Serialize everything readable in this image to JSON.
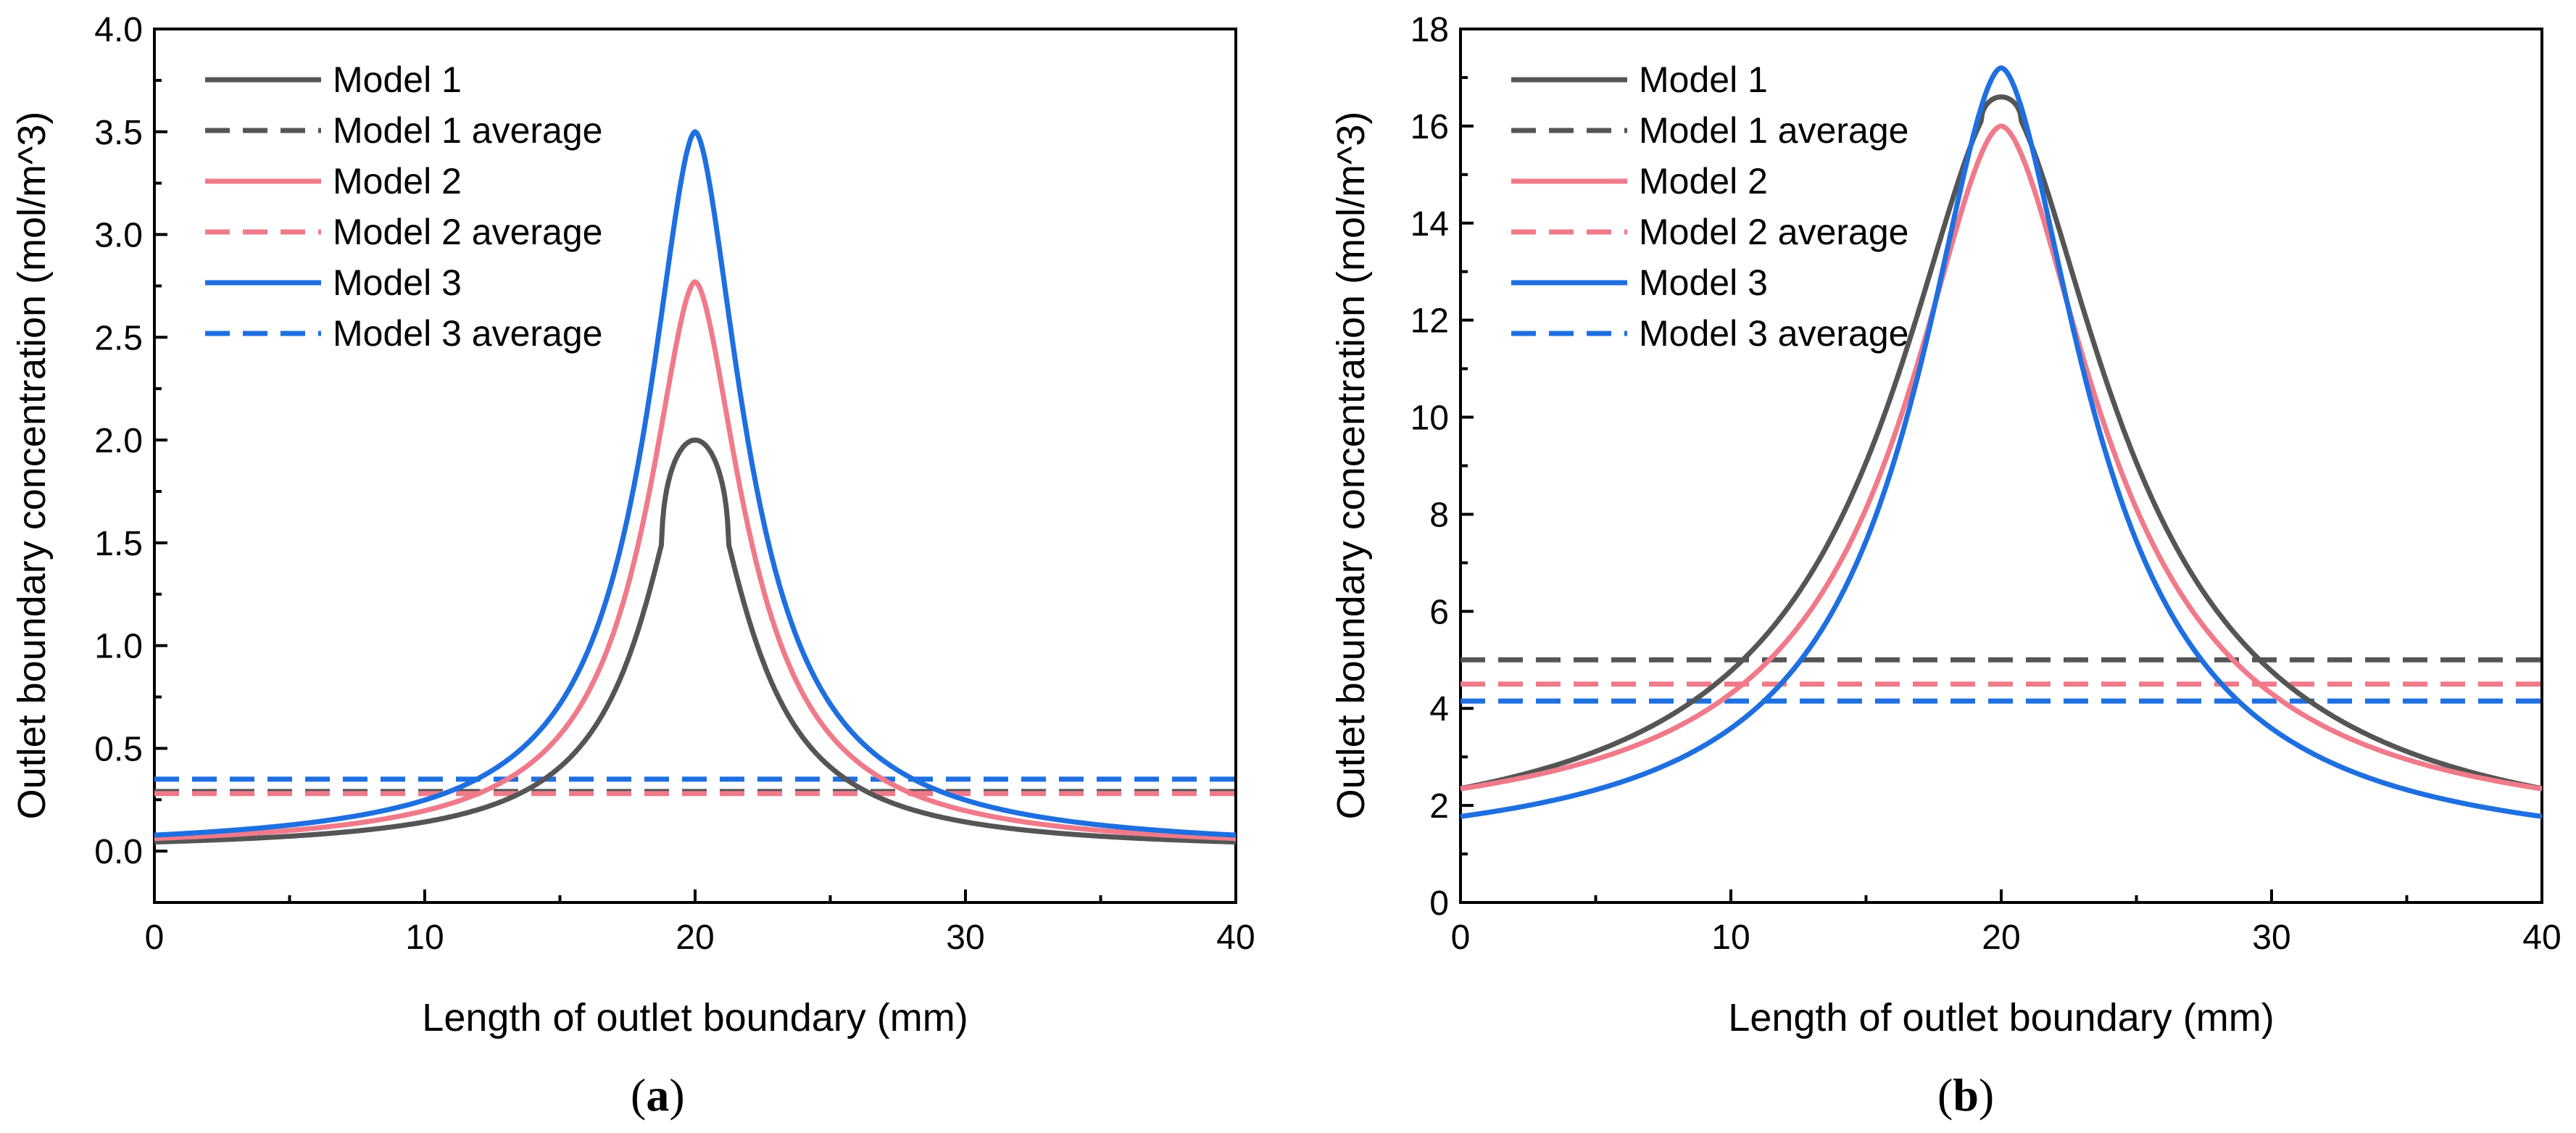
{
  "chart_data": [
    {
      "type": "line",
      "panel_label_open": "(",
      "panel_label_letter": "a",
      "panel_label_close": ")",
      "xlabel": "Length of outlet boundary (mm)",
      "ylabel": "Outlet boundary concentration (mol/m^3)",
      "xlim": [
        0,
        40
      ],
      "ylim": [
        -0.25,
        4.0
      ],
      "xticks": [
        "0",
        "10",
        "20",
        "30",
        "40"
      ],
      "yticks": [
        "0.0",
        "0.5",
        "1.0",
        "1.5",
        "2.0",
        "2.5",
        "3.0",
        "3.5",
        "4.0"
      ],
      "legend_position": "top-left",
      "series": [
        {
          "name": "Model 1",
          "color": "#555555",
          "style": "solid",
          "kind": "plateau",
          "peak": 2.0,
          "base": 0.0,
          "width": 2.3,
          "cut": 1.5
        },
        {
          "name": "Model 1 average",
          "color": "#555555",
          "style": "dashed",
          "kind": "constant",
          "value": 0.29
        },
        {
          "name": "Model 2",
          "color": "#f07a8a",
          "style": "solid",
          "kind": "peak",
          "peak": 2.77,
          "base": 0.0,
          "width": 2.3
        },
        {
          "name": "Model 2 average",
          "color": "#f07a8a",
          "style": "dashed",
          "kind": "constant",
          "value": 0.28
        },
        {
          "name": "Model 3",
          "color": "#1e6fe0",
          "style": "solid",
          "kind": "peak",
          "peak": 3.5,
          "base": 0.0,
          "width": 2.3
        },
        {
          "name": "Model 3 average",
          "color": "#1e6fe0",
          "style": "dashed",
          "kind": "constant",
          "value": 0.35
        }
      ]
    },
    {
      "type": "line",
      "panel_label_open": "(",
      "panel_label_letter": "b",
      "panel_label_close": ")",
      "xlabel": "Length of outlet boundary (mm)",
      "ylabel": "Outlet boundary concentration (mol/m^3)",
      "xlim": [
        0,
        40
      ],
      "ylim": [
        0,
        18
      ],
      "xticks": [
        "0",
        "10",
        "20",
        "30",
        "40"
      ],
      "yticks": [
        "0",
        "2",
        "4",
        "6",
        "8",
        "10",
        "12",
        "14",
        "16",
        "18"
      ],
      "legend_position": "top-left",
      "series": [
        {
          "name": "Model 1",
          "color": "#555555",
          "style": "solid",
          "kind": "plateau",
          "peak": 16.6,
          "base": 1.0,
          "width": 5.2,
          "cut": 16.1
        },
        {
          "name": "Model 1 average",
          "color": "#555555",
          "style": "dashed",
          "kind": "constant",
          "value": 5.0
        },
        {
          "name": "Model 2",
          "color": "#f07a8a",
          "style": "solid",
          "kind": "peak",
          "peak": 16.0,
          "base": 1.3,
          "width": 4.6
        },
        {
          "name": "Model 2 average",
          "color": "#f07a8a",
          "style": "dashed",
          "kind": "constant",
          "value": 4.5
        },
        {
          "name": "Model 3",
          "color": "#1e6fe0",
          "style": "solid",
          "kind": "peak",
          "peak": 17.2,
          "base": 0.85,
          "width": 4.0
        },
        {
          "name": "Model 3 average",
          "color": "#1e6fe0",
          "style": "dashed",
          "kind": "constant",
          "value": 4.15
        }
      ]
    }
  ]
}
